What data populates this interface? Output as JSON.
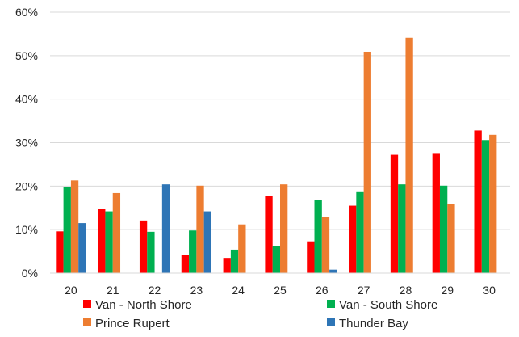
{
  "chart_data": {
    "type": "bar",
    "title": "",
    "xlabel": "",
    "ylabel": "",
    "ylim": [
      0,
      60
    ],
    "y_tick_values": [
      0,
      10,
      20,
      30,
      40,
      50,
      60
    ],
    "y_tick_labels": [
      "0%",
      "10%",
      "20%",
      "30%",
      "40%",
      "50%",
      "60%"
    ],
    "grid": "horizontal",
    "legend_position": "bottom",
    "categories": [
      "20",
      "21",
      "22",
      "23",
      "24",
      "25",
      "26",
      "27",
      "28",
      "29",
      "30"
    ],
    "series": [
      {
        "name": "Van - North Shore",
        "color": "#ff0000",
        "values": [
          9.6,
          14.8,
          12.1,
          4.1,
          3.5,
          17.8,
          7.3,
          15.5,
          27.2,
          27.6,
          32.8
        ]
      },
      {
        "name": "Van - South Shore",
        "color": "#00b050",
        "values": [
          19.7,
          14.2,
          9.5,
          9.8,
          5.4,
          6.3,
          16.8,
          18.8,
          20.4,
          20.1,
          30.6
        ]
      },
      {
        "name": "Prince Rupert",
        "color": "#ed7d31",
        "values": [
          21.3,
          18.4,
          0,
          20.1,
          11.2,
          20.4,
          12.9,
          50.9,
          54.1,
          15.9,
          31.8
        ]
      },
      {
        "name": "Thunder Bay",
        "color": "#2e75b6",
        "values": [
          11.5,
          0,
          20.4,
          14.2,
          0,
          0,
          0.8,
          0,
          0,
          0,
          0
        ]
      }
    ]
  }
}
